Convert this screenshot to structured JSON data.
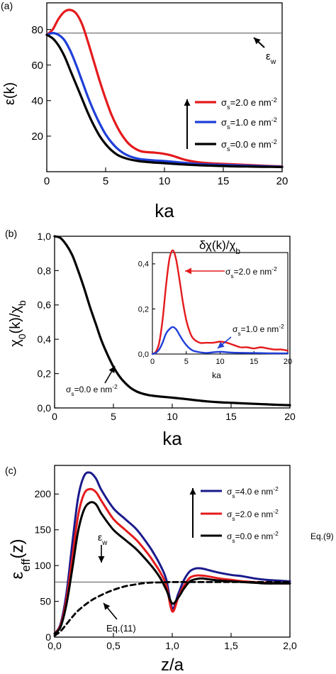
{
  "chart_data": [
    {
      "panel": "(a)",
      "type": "line",
      "xlabel": "ka",
      "ylabel": "ε(k)",
      "xlim": [
        0,
        20
      ],
      "ylim": [
        0,
        95
      ],
      "xticks": [
        "0",
        "5",
        "10",
        "15",
        "20"
      ],
      "yticks": [
        "20",
        "40",
        "60",
        "80"
      ],
      "grid": false,
      "legend_position": "right",
      "reference_line": {
        "y": 78,
        "label": "ε",
        "sub": "w"
      },
      "series": [
        {
          "name": "σs=2.0 e nm-2",
          "label_main": "σ",
          "label_sub": "s",
          "label_rest": "=2.0 e nm",
          "label_sup": "-2",
          "color": "#e41a1c",
          "x": [
            0,
            0.5,
            1,
            1.5,
            2,
            2.5,
            3,
            3.5,
            4,
            4.5,
            5,
            5.5,
            6,
            6.5,
            7,
            7.5,
            8,
            8.5,
            9,
            9.5,
            10,
            10.5,
            11,
            11.5,
            12,
            13,
            14,
            15,
            16,
            17,
            18,
            19,
            20
          ],
          "y": [
            77,
            80,
            86,
            90,
            91,
            89,
            83,
            73,
            62,
            51,
            41,
            32,
            25,
            19.5,
            15.5,
            13,
            11.5,
            11,
            10.8,
            10.5,
            10,
            9.3,
            8.3,
            7.2,
            6.3,
            5.2,
            4.7,
            4.4,
            4.1,
            3.8,
            3.5,
            3.2,
            3
          ]
        },
        {
          "name": "σs=1.0 e nm-2",
          "label_main": "σ",
          "label_sub": "s",
          "label_rest": "=1.0 e nm",
          "label_sup": "-2",
          "color": "#1f3fd8",
          "x": [
            0,
            0.5,
            1,
            1.5,
            2,
            2.5,
            3,
            3.5,
            4,
            4.5,
            5,
            5.5,
            6,
            6.5,
            7,
            7.5,
            8,
            9,
            10,
            11,
            12,
            13,
            14,
            15,
            16,
            17,
            18,
            19,
            20
          ],
          "y": [
            77,
            78,
            77,
            74,
            68,
            60,
            51,
            42,
            34,
            27,
            21,
            16.5,
            13,
            10.5,
            8.8,
            7.7,
            7,
            6.4,
            6,
            5.4,
            4.8,
            4.3,
            4,
            3.8,
            3.6,
            3.4,
            3.2,
            3,
            2.8
          ]
        },
        {
          "name": "σs=0.0 e nm-2",
          "label_main": "σ",
          "label_sub": "s",
          "label_rest": "=0.0 e nm",
          "label_sup": "-2",
          "color": "#000000",
          "x": [
            0,
            0.5,
            1,
            1.5,
            2,
            2.5,
            3,
            3.5,
            4,
            4.5,
            5,
            5.5,
            6,
            6.5,
            7,
            7.5,
            8,
            9,
            10,
            11,
            12,
            13,
            14,
            15,
            16,
            17,
            18,
            19,
            20
          ],
          "y": [
            77,
            75,
            71,
            65,
            57,
            49,
            41,
            33,
            26,
            20,
            15.5,
            12,
            9.5,
            8,
            7,
            6.3,
            5.8,
            5.2,
            4.8,
            4.3,
            3.9,
            3.6,
            3.4,
            3.2,
            3,
            2.9,
            2.8,
            2.7,
            2.6
          ]
        }
      ]
    },
    {
      "panel": "(b)",
      "type": "line",
      "xlabel": "ka",
      "ylabel_main": "χ",
      "ylabel_sub": "0",
      "ylabel_rest": "(k)/χ",
      "ylabel_sub2": "b",
      "xlim": [
        0,
        20
      ],
      "ylim": [
        0,
        1.0
      ],
      "xticks": [
        "0",
        "5",
        "10",
        "15",
        "20"
      ],
      "yticks": [
        "0,0",
        "0,2",
        "0,4",
        "0,6",
        "0,8",
        "1,0"
      ],
      "grid": false,
      "series": [
        {
          "name": "σs=0.0 e nm-2",
          "label_main": "σ",
          "label_sub": "s",
          "label_rest": "=0.0 e nm",
          "label_sup": "-2",
          "color": "#000000",
          "x": [
            0,
            0.5,
            1,
            1.5,
            2,
            2.5,
            3,
            3.5,
            4,
            4.5,
            5,
            5.5,
            6,
            6.5,
            7,
            7.5,
            8,
            8.5,
            9,
            10,
            11,
            12,
            13,
            14,
            15,
            16,
            17,
            18,
            19,
            20
          ],
          "y": [
            1.0,
            0.99,
            0.95,
            0.89,
            0.8,
            0.7,
            0.59,
            0.49,
            0.39,
            0.31,
            0.24,
            0.185,
            0.145,
            0.115,
            0.095,
            0.083,
            0.075,
            0.07,
            0.066,
            0.06,
            0.053,
            0.045,
            0.038,
            0.033,
            0.03,
            0.027,
            0.024,
            0.021,
            0.018,
            0.016
          ]
        }
      ],
      "inset": {
        "type": "line",
        "title_main": "δχ",
        "title_rest": "(k)/χ",
        "title_sub": "b",
        "xlabel": "ka",
        "xlim": [
          0,
          20
        ],
        "ylim": [
          0,
          0.45
        ],
        "xticks": [
          "0",
          "5",
          "10",
          "15",
          "20"
        ],
        "yticks": [
          "0,0",
          "0,2",
          "0,4"
        ],
        "series": [
          {
            "name": "σs=2.0 e nm-2",
            "label_main": "σ",
            "label_sub": "s",
            "label_rest": "=2.0 e nm",
            "label_sup": "-2",
            "color": "#e41a1c",
            "x": [
              0,
              0.5,
              1,
              1.5,
              2,
              2.5,
              3,
              3.5,
              4,
              4.5,
              5,
              5.5,
              6,
              7,
              8,
              9,
              10,
              11,
              12,
              13,
              14,
              15,
              16,
              17,
              18,
              19,
              20
            ],
            "y": [
              0,
              0.01,
              0.05,
              0.15,
              0.3,
              0.42,
              0.46,
              0.42,
              0.33,
              0.23,
              0.15,
              0.1,
              0.07,
              0.05,
              0.05,
              0.05,
              0.055,
              0.05,
              0.04,
              0.03,
              0.03,
              0.025,
              0.03,
              0.025,
              0.02,
              0.02,
              0.015
            ]
          },
          {
            "name": "σs=1.0 e nm-2",
            "label_main": "σ",
            "label_sub": "s",
            "label_rest": "=1.0 e nm",
            "label_sup": "-2",
            "color": "#1f3fd8",
            "x": [
              0,
              0.5,
              1,
              1.5,
              2,
              2.5,
              3,
              3.5,
              4,
              4.5,
              5,
              5.5,
              6,
              7,
              8,
              9,
              10,
              11,
              12,
              14,
              16,
              18,
              20
            ],
            "y": [
              0,
              0.005,
              0.02,
              0.05,
              0.09,
              0.11,
              0.12,
              0.11,
              0.085,
              0.06,
              0.04,
              0.025,
              0.015,
              0.008,
              0.005,
              0.008,
              0.01,
              0.008,
              0.006,
              0.005,
              0.004,
              0.003,
              0.003
            ]
          }
        ]
      }
    },
    {
      "panel": "(c)",
      "type": "line",
      "xlabel": "z/a",
      "ylabel_main": "ε",
      "ylabel_sub": "eff",
      "ylabel_rest": "(z)",
      "xlim": [
        0,
        2.0
      ],
      "ylim": [
        0,
        240
      ],
      "xticks": [
        "0,0",
        "0,5",
        "1,0",
        "1,5",
        "2,0"
      ],
      "yticks": [
        "0",
        "50",
        "100",
        "150",
        "200"
      ],
      "grid": false,
      "reference_line": {
        "y": 77,
        "label": "ε",
        "sub": "w"
      },
      "eq9_label": "Eq.(9)",
      "eq11_label": "Eq.(11)",
      "series": [
        {
          "name": "σs=4.0 e nm-2",
          "label_main": "σ",
          "label_sub": "s",
          "label_rest": "=4.0 e nm",
          "label_sup": "-2",
          "color": "#1a1a8c",
          "x": [
            0,
            0.05,
            0.1,
            0.15,
            0.2,
            0.25,
            0.3,
            0.35,
            0.4,
            0.5,
            0.6,
            0.7,
            0.8,
            0.85,
            0.9,
            0.95,
            1.0,
            1.05,
            1.1,
            1.15,
            1.2,
            1.25,
            1.3,
            1.4,
            1.5,
            1.6,
            1.7,
            1.8,
            1.9,
            2.0
          ],
          "y": [
            5,
            18,
            60,
            130,
            195,
            225,
            230,
            222,
            205,
            180,
            165,
            150,
            128,
            115,
            100,
            80,
            40,
            60,
            80,
            92,
            96,
            96,
            94,
            90,
            87,
            85,
            82,
            80,
            79,
            78
          ]
        },
        {
          "name": "σs=2.0 e nm-2",
          "label_main": "σ",
          "label_sub": "s",
          "label_rest": "=2.0 e nm",
          "label_sup": "-2",
          "color": "#e41a1c",
          "x": [
            0,
            0.05,
            0.1,
            0.15,
            0.2,
            0.25,
            0.3,
            0.35,
            0.4,
            0.5,
            0.6,
            0.7,
            0.8,
            0.85,
            0.9,
            0.95,
            1.0,
            1.05,
            1.1,
            1.15,
            1.2,
            1.25,
            1.3,
            1.4,
            1.5,
            1.6,
            1.7,
            1.8,
            1.9,
            2.0
          ],
          "y": [
            5,
            16,
            52,
            110,
            170,
            200,
            207,
            203,
            190,
            165,
            150,
            135,
            115,
            103,
            90,
            72,
            36,
            55,
            72,
            83,
            86,
            86,
            85,
            82,
            80,
            78,
            77,
            76,
            75,
            75
          ]
        },
        {
          "name": "σs=0.0 e nm-2",
          "label_main": "σ",
          "label_sub": "s",
          "label_rest": "=0.0 e nm",
          "label_sup": "-2",
          "color": "#000000",
          "x": [
            0,
            0.05,
            0.1,
            0.15,
            0.2,
            0.25,
            0.3,
            0.35,
            0.4,
            0.5,
            0.6,
            0.7,
            0.8,
            0.85,
            0.9,
            0.95,
            1.0,
            1.05,
            1.1,
            1.15,
            1.2,
            1.25,
            1.3,
            1.4,
            1.5,
            1.6,
            1.7,
            1.8,
            1.9,
            2.0
          ],
          "y": [
            5,
            14,
            45,
            95,
            148,
            178,
            188,
            186,
            172,
            150,
            136,
            122,
            104,
            94,
            82,
            66,
            47,
            55,
            68,
            78,
            81,
            82,
            81,
            79,
            78,
            77,
            76,
            75,
            75,
            75
          ]
        },
        {
          "name": "Eq.(11)",
          "color": "#000000",
          "dashed": true,
          "x": [
            0,
            0.05,
            0.1,
            0.15,
            0.2,
            0.3,
            0.4,
            0.5,
            0.6,
            0.7,
            0.8,
            0.9,
            1.0,
            1.2,
            1.4,
            1.6,
            1.8,
            2.0
          ],
          "y": [
            2,
            8,
            18,
            28,
            37,
            50,
            59,
            66,
            71,
            74,
            76,
            76.5,
            77,
            77,
            77,
            77,
            77,
            77
          ]
        }
      ]
    }
  ],
  "panel_labels": [
    "(a)",
    "(b)",
    "(c)"
  ]
}
